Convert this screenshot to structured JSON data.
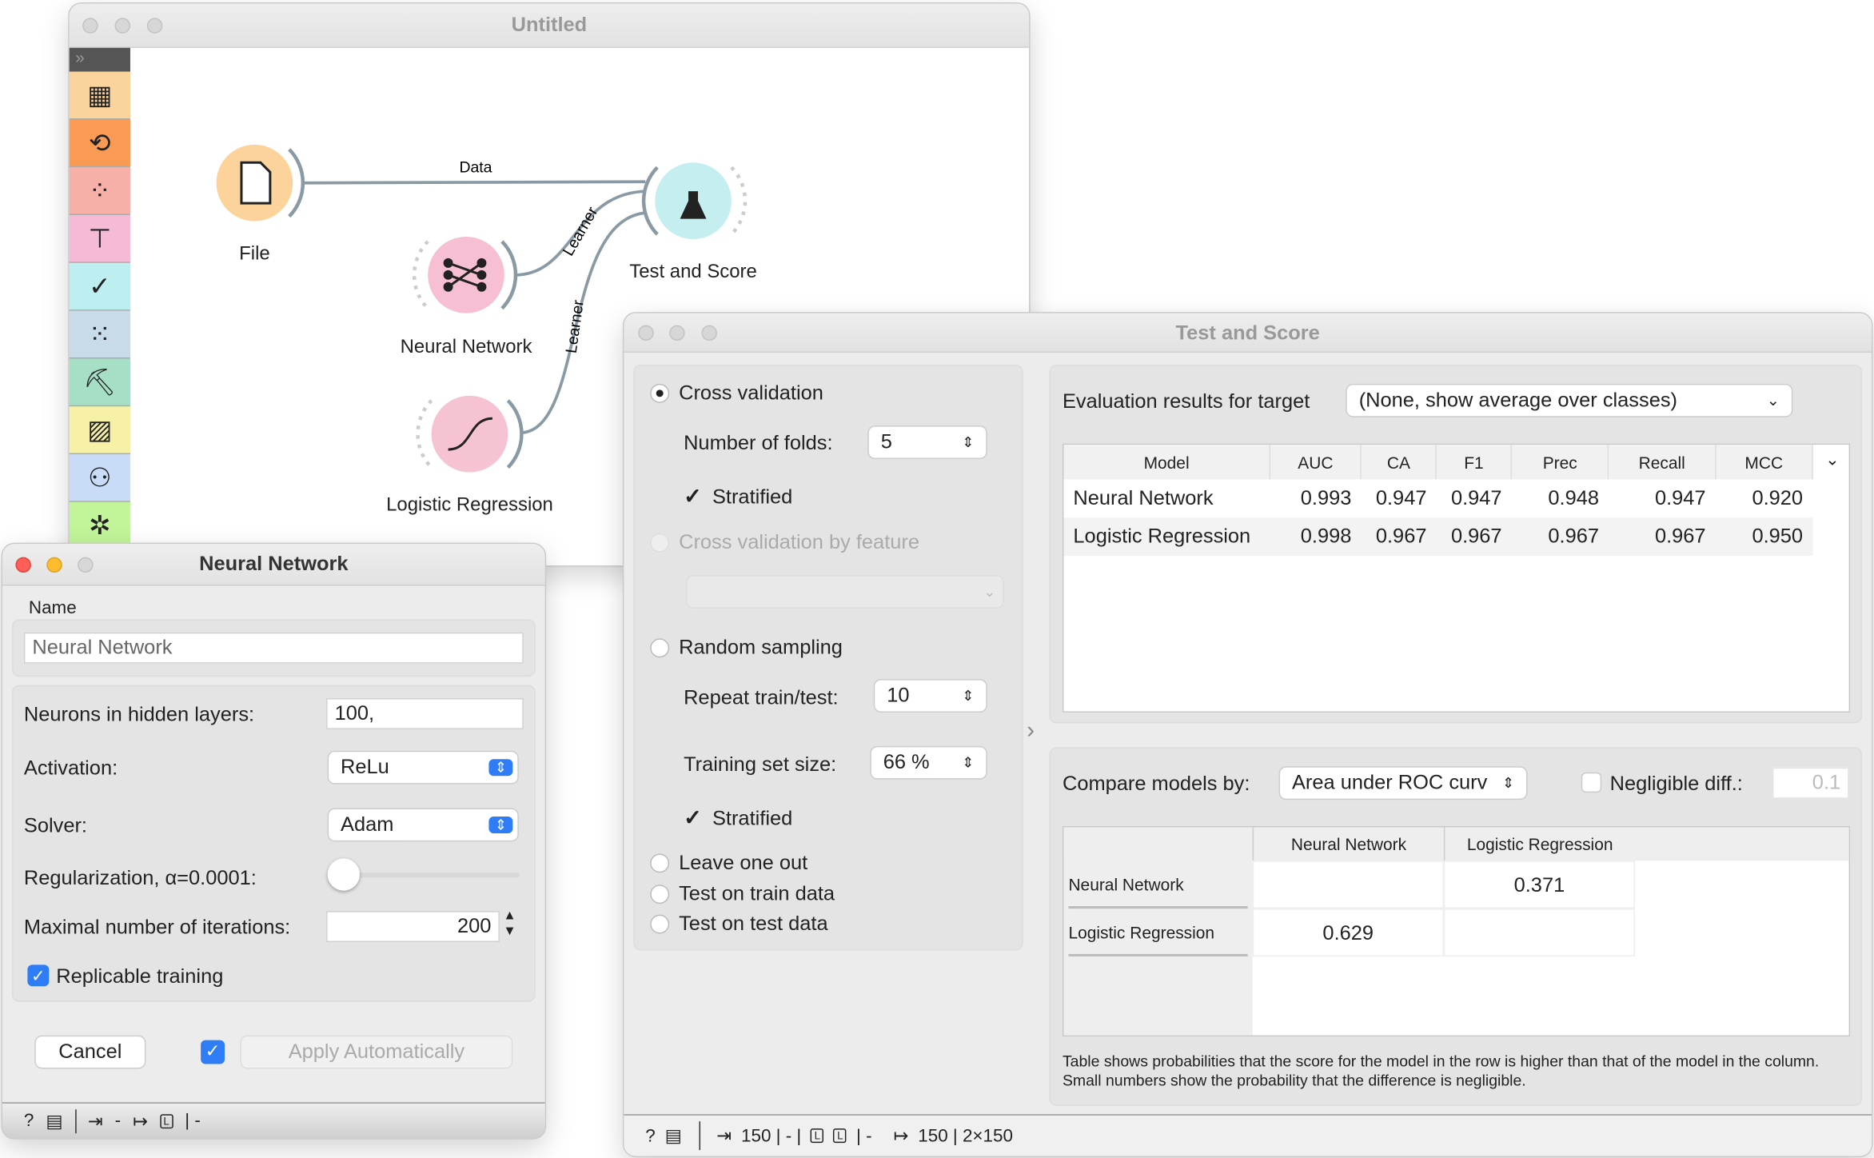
{
  "canvas": {
    "title": "Untitled",
    "toolbar_categories": [
      "data-table-icon",
      "transform-icon",
      "visualize-icon",
      "model-icon",
      "evaluate-icon",
      "unsupervised-icon",
      "text-mining-icon",
      "image-analytics-icon",
      "venn-icon",
      "network-icon"
    ],
    "toolbar_colors": [
      "#fbd39c",
      "#f99a55",
      "#f7b0a8",
      "#f5bbd6",
      "#bdeef0",
      "#c7dbe9",
      "#a6dfc6",
      "#f6f1a6",
      "#c9dcf7",
      "#c2f49a"
    ],
    "nodes": {
      "file": "File",
      "test_score": "Test and Score",
      "neural_network": "Neural Network",
      "logistic_regression": "Logistic Regression"
    },
    "links": {
      "data": "Data",
      "learner1": "Learner",
      "learner2": "Learner"
    }
  },
  "nn": {
    "title": "Neural Network",
    "name_label": "Name",
    "name_value": "Neural Network",
    "neurons_label": "Neurons in hidden layers:",
    "neurons_value": "100,",
    "activation_label": "Activation:",
    "activation_value": "ReLu",
    "solver_label": "Solver:",
    "solver_value": "Adam",
    "reg_label": "Regularization, α=0.0001:",
    "reg_slider": 0.0,
    "iter_label": "Maximal number of iterations:",
    "iter_value": "200",
    "replicable_label": "Replicable training",
    "replicable_checked": true,
    "cancel": "Cancel",
    "auto_checked": true,
    "apply": "Apply Automatically",
    "status": {
      "in": "-",
      "out": "| -"
    }
  },
  "ts": {
    "title": "Test and Score",
    "cv": "Cross validation",
    "folds_label": "Number of folds:",
    "folds_value": "5",
    "stratified1": "Stratified",
    "cv_feature": "Cross validation by feature",
    "random": "Random sampling",
    "repeat_label": "Repeat train/test:",
    "repeat_value": "10",
    "train_size_label": "Training set size:",
    "train_size_value": "66 %",
    "stratified2": "Stratified",
    "loo": "Leave one out",
    "train_data": "Test on train data",
    "test_data": "Test on test data",
    "target_label": "Evaluation results for target",
    "target_value": "(None, show average over classes)",
    "columns": [
      "Model",
      "AUC",
      "CA",
      "F1",
      "Prec",
      "Recall",
      "MCC"
    ],
    "rows": [
      [
        "Neural Network",
        "0.993",
        "0.947",
        "0.947",
        "0.948",
        "0.947",
        "0.920"
      ],
      [
        "Logistic Regression",
        "0.998",
        "0.967",
        "0.967",
        "0.967",
        "0.967",
        "0.950"
      ]
    ],
    "compare_label": "Compare models by:",
    "compare_value": "Area under ROC curv",
    "negligible_label": "Negligible diff.:",
    "negligible_value": "0.1",
    "cmp_columns": [
      "Neural Network",
      "Logistic Regression"
    ],
    "cmp_rows": [
      {
        "name": "Neural Network",
        "values": [
          "",
          "0.371"
        ]
      },
      {
        "name": "Logistic Regression",
        "values": [
          "0.629",
          ""
        ]
      }
    ],
    "note": "Table shows probabilities that the score for the model in the row is higher than that of the model in the column. Small numbers show the probability that the difference is negligible.",
    "status": {
      "in": "150 | - | ",
      "in_tail": " | -",
      "out": "150 | 2×150"
    }
  }
}
